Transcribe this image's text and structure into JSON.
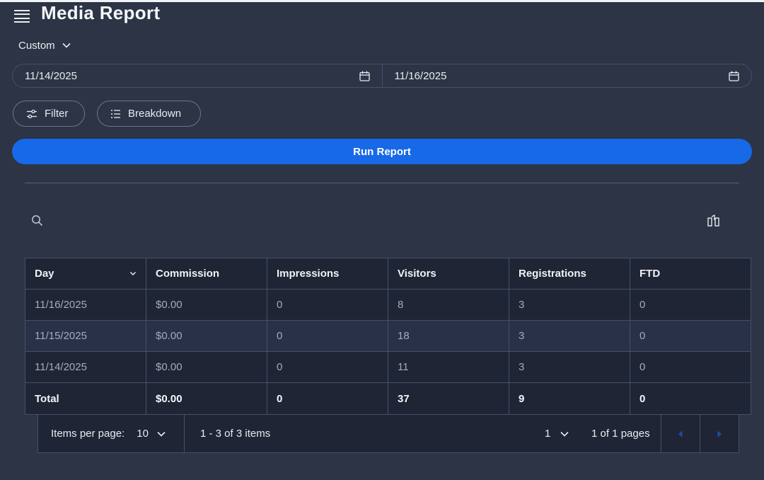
{
  "header": {
    "title": "Media Report"
  },
  "range": {
    "selected": "Custom"
  },
  "dates": {
    "start": "11/14/2025",
    "end": "11/16/2025"
  },
  "actions": {
    "filter_label": "Filter",
    "breakdown_label": "Breakdown",
    "run_label": "Run Report"
  },
  "table": {
    "columns": [
      "Day",
      "Commission",
      "Impressions",
      "Visitors",
      "Registrations",
      "FTD"
    ],
    "sort_column": "Day",
    "rows": [
      [
        "11/16/2025",
        "$0.00",
        "0",
        "8",
        "3",
        "0"
      ],
      [
        "11/15/2025",
        "$0.00",
        "0",
        "18",
        "3",
        "0"
      ],
      [
        "11/14/2025",
        "$0.00",
        "0",
        "11",
        "3",
        "0"
      ]
    ],
    "total": [
      "Total",
      "$0.00",
      "0",
      "37",
      "9",
      "0"
    ]
  },
  "pager": {
    "items_per_page_label": "Items per page:",
    "items_per_page": "10",
    "range_text": "1 - 3 of 3 items",
    "current_page": "1",
    "pages_text": "1 of 1 pages"
  },
  "icons": [
    "menu-icon",
    "chevron-down-icon",
    "calendar-icon",
    "sliders-icon",
    "list-icon",
    "search-icon",
    "columns-icon",
    "prev-page-icon",
    "next-page-icon"
  ],
  "colors": {
    "background": "#2c3445",
    "table_bg": "#1f2534",
    "accent": "#1769e8",
    "border": "#46506a"
  }
}
